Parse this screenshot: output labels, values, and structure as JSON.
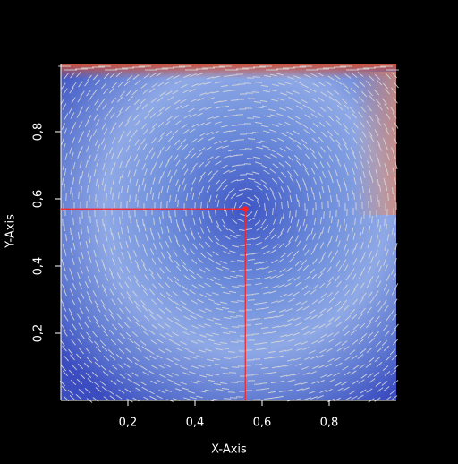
{
  "chart_data": {
    "type": "vector-field",
    "xlabel": "X-Axis",
    "ylabel": "Y-Axis",
    "xlim": [
      0,
      1
    ],
    "ylim": [
      0,
      1
    ],
    "xticks": [
      {
        "value": 0.2,
        "label": "0,2"
      },
      {
        "value": 0.4,
        "label": "0,4"
      },
      {
        "value": 0.6,
        "label": "0,6"
      },
      {
        "value": 0.8,
        "label": "0,8"
      }
    ],
    "yticks": [
      {
        "value": 0.2,
        "label": "0,2"
      },
      {
        "value": 0.4,
        "label": "0,4"
      },
      {
        "value": 0.6,
        "label": "0,6"
      },
      {
        "value": 0.8,
        "label": "0,8"
      }
    ],
    "probe": {
      "x": 0.55,
      "y": 0.57,
      "color": "#ff2020"
    }
  }
}
